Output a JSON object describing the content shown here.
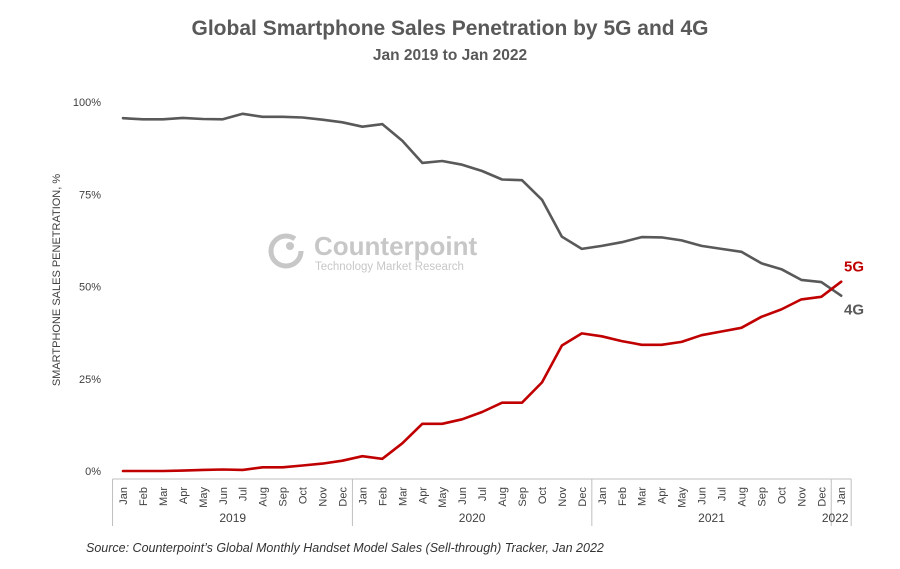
{
  "chart_data": {
    "type": "line",
    "title": "Global Smartphone Sales Penetration by 5G and 4G",
    "subtitle": "Jan 2019 to Jan 2022",
    "ylabel": "SMARTPHONE SALES PENETRATION, %",
    "xlabel": "",
    "ylim": [
      0,
      100
    ],
    "y_ticks": [
      "0%",
      "25%",
      "50%",
      "75%",
      "100%"
    ],
    "grid": false,
    "categories": [
      "Jan",
      "Feb",
      "Mar",
      "Apr",
      "May",
      "Jun",
      "Jul",
      "Aug",
      "Sep",
      "Oct",
      "Nov",
      "Dec",
      "Jan",
      "Feb",
      "Mar",
      "Apr",
      "May",
      "Jun",
      "Jul",
      "Aug",
      "Sep",
      "Oct",
      "Nov",
      "Dec",
      "Jan",
      "Feb",
      "Mar",
      "Apr",
      "May",
      "Jun",
      "Jul",
      "Aug",
      "Sep",
      "Oct",
      "Nov",
      "Dec",
      "Jan"
    ],
    "years": [
      {
        "label": "2019",
        "start": 0,
        "end": 11
      },
      {
        "label": "2020",
        "start": 12,
        "end": 23
      },
      {
        "label": "2021",
        "start": 24,
        "end": 35
      },
      {
        "label": "2022",
        "start": 36,
        "end": 36
      }
    ],
    "series": [
      {
        "name": "4G",
        "color": "#595959",
        "values": [
          95.6,
          95.3,
          95.3,
          95.7,
          95.4,
          95.3,
          96.8,
          96.0,
          96.0,
          95.8,
          95.2,
          94.5,
          93.3,
          94.0,
          89.5,
          83.5,
          84.0,
          83.0,
          81.3,
          79.0,
          78.8,
          73.5,
          63.5,
          60.2,
          61.0,
          62.0,
          63.4,
          63.3,
          62.5,
          61.0,
          60.2,
          59.4,
          56.3,
          54.7,
          51.8,
          51.2,
          47.5
        ]
      },
      {
        "name": "5G",
        "color": "#c00000",
        "values": [
          0.0,
          0.0,
          0.0,
          0.1,
          0.3,
          0.4,
          0.3,
          1.0,
          1.0,
          1.5,
          2.0,
          2.8,
          4.0,
          3.3,
          7.5,
          12.8,
          12.8,
          14.0,
          16.0,
          18.5,
          18.5,
          24.0,
          34.0,
          37.3,
          36.5,
          35.2,
          34.2,
          34.2,
          35.0,
          36.8,
          37.8,
          38.8,
          41.8,
          43.8,
          46.5,
          47.2,
          51.3
        ]
      }
    ]
  },
  "watermark": {
    "name": "Counterpoint",
    "tagline": "Technology Market Research"
  },
  "source": "Source: Counterpoint’s Global Monthly Handset Model Sales (Sell-through) Tracker, Jan 2022"
}
